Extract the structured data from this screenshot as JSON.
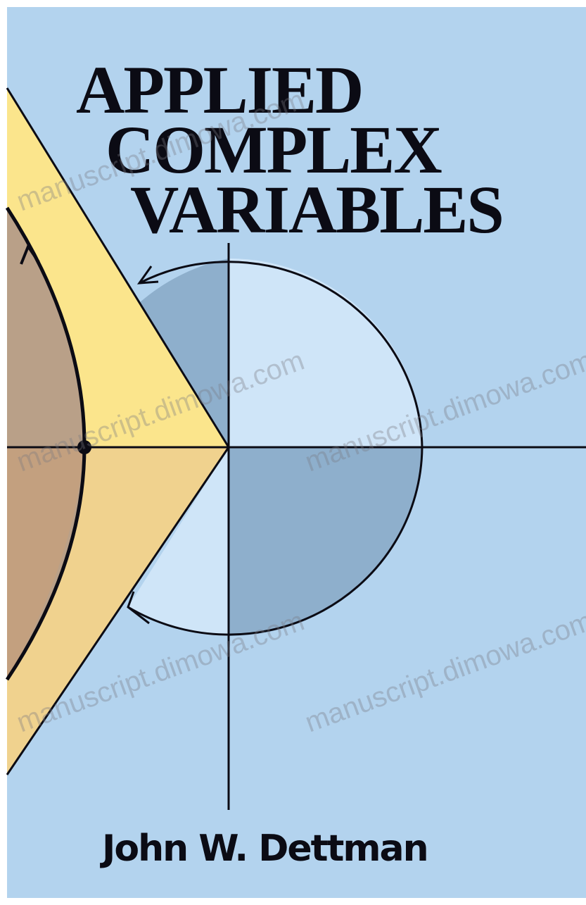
{
  "cover": {
    "title_lines": [
      "APPLIED",
      "COMPLEX",
      "VARIABLES"
    ],
    "author": "John W. Dettman",
    "watermark": "manuscript.dimowa.com"
  }
}
